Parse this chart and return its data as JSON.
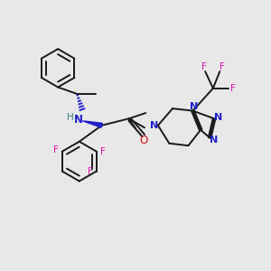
{
  "background_color": "#e8e8e8",
  "bond_color": "#1a1a1a",
  "N_color": "#2020cc",
  "O_color": "#cc1010",
  "F_color": "#dd10aa",
  "NH_color": "#408080",
  "figsize": [
    3.0,
    3.0
  ],
  "dpi": 100,
  "xlim": [
    0,
    12
  ],
  "ylim": [
    0,
    12
  ]
}
